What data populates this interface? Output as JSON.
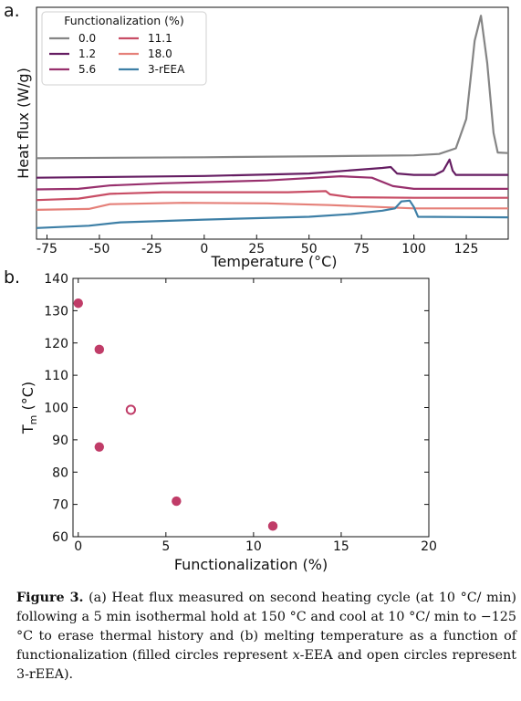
{
  "chart_data": [
    {
      "type": "line",
      "panel_label": "a.",
      "xlabel": "Temperature (°C)",
      "ylabel": "Heat flux (W/g)",
      "xlim": [
        -80,
        145
      ],
      "x_ticks": [
        -75,
        -50,
        -25,
        0,
        25,
        50,
        75,
        100,
        125
      ],
      "grid": false,
      "legend": {
        "title": "Functionalization (%)",
        "placement": "top-left",
        "columns": 2
      },
      "series": [
        {
          "name": "0.0",
          "color": "#858585",
          "points": [
            [
              -80,
              0.6
            ],
            [
              0,
              0.63
            ],
            [
              60,
              0.67
            ],
            [
              100,
              0.7
            ],
            [
              112,
              0.75
            ],
            [
              120,
              0.95
            ],
            [
              125,
              2.0
            ],
            [
              129,
              4.8
            ],
            [
              132,
              5.7
            ],
            [
              135,
              4.0
            ],
            [
              138,
              1.5
            ],
            [
              140,
              0.8
            ],
            [
              145,
              0.78
            ]
          ]
        },
        {
          "name": "1.2",
          "color": "#651d62",
          "points": [
            [
              -80,
              -0.1
            ],
            [
              0,
              -0.04
            ],
            [
              50,
              0.05
            ],
            [
              85,
              0.25
            ],
            [
              89,
              0.28
            ],
            [
              92,
              0.05
            ],
            [
              100,
              0.0
            ],
            [
              110,
              0.0
            ],
            [
              114,
              0.15
            ],
            [
              117,
              0.55
            ],
            [
              118.5,
              0.15
            ],
            [
              120,
              0.0
            ],
            [
              145,
              0.0
            ]
          ]
        },
        {
          "name": "5.6",
          "color": "#98306d",
          "points": [
            [
              -80,
              -0.52
            ],
            [
              -60,
              -0.5
            ],
            [
              -45,
              -0.38
            ],
            [
              -20,
              -0.3
            ],
            [
              30,
              -0.2
            ],
            [
              65,
              -0.05
            ],
            [
              80,
              -0.1
            ],
            [
              90,
              -0.4
            ],
            [
              100,
              -0.5
            ],
            [
              145,
              -0.5
            ]
          ]
        },
        {
          "name": "11.1",
          "color": "#c84d65",
          "points": [
            [
              -80,
              -0.9
            ],
            [
              -60,
              -0.85
            ],
            [
              -45,
              -0.68
            ],
            [
              -20,
              -0.62
            ],
            [
              40,
              -0.62
            ],
            [
              58,
              -0.58
            ],
            [
              60,
              -0.7
            ],
            [
              70,
              -0.8
            ],
            [
              100,
              -0.82
            ],
            [
              145,
              -0.82
            ]
          ]
        },
        {
          "name": "18.0",
          "color": "#e58079",
          "points": [
            [
              -80,
              -1.25
            ],
            [
              -55,
              -1.22
            ],
            [
              -45,
              -1.05
            ],
            [
              -10,
              -1.0
            ],
            [
              30,
              -1.02
            ],
            [
              60,
              -1.08
            ],
            [
              100,
              -1.2
            ],
            [
              145,
              -1.2
            ]
          ]
        },
        {
          "name": "3-rEEA",
          "color": "#3d7fa6",
          "points": [
            [
              -80,
              -1.9
            ],
            [
              -55,
              -1.82
            ],
            [
              -40,
              -1.7
            ],
            [
              0,
              -1.6
            ],
            [
              50,
              -1.5
            ],
            [
              70,
              -1.4
            ],
            [
              85,
              -1.28
            ],
            [
              91,
              -1.2
            ],
            [
              94,
              -0.95
            ],
            [
              98,
              -0.92
            ],
            [
              100,
              -1.15
            ],
            [
              102,
              -1.5
            ],
            [
              145,
              -1.52
            ]
          ]
        }
      ]
    },
    {
      "type": "scatter",
      "panel_label": "b.",
      "xlabel": "Functionalization (%)",
      "ylabel_main": "T",
      "ylabel_sub": "m",
      "ylabel_unit": " (°C)",
      "xlim": [
        -0.3,
        20
      ],
      "ylim": [
        60,
        140
      ],
      "x_ticks": [
        0,
        5,
        10,
        15,
        20
      ],
      "y_ticks": [
        60,
        70,
        80,
        90,
        100,
        110,
        120,
        130,
        140
      ],
      "grid": false,
      "color": "#c03c68",
      "series": [
        {
          "name": "x-EEA",
          "marker": "filled",
          "points": [
            [
              0.0,
              132.3
            ],
            [
              1.2,
              118.0
            ],
            [
              1.2,
              87.8
            ],
            [
              5.6,
              71.0
            ],
            [
              11.1,
              63.3
            ]
          ]
        },
        {
          "name": "3-rEEA",
          "marker": "open",
          "points": [
            [
              3.0,
              99.3
            ]
          ]
        }
      ]
    }
  ],
  "caption": {
    "label": "Figure 3.",
    "text_1": " (a) Heat flux measured on second heating cycle (at 10 °C/ min) following a 5 min isothermal hold at 150 °C and cool at 10 °C/ min to −125 °C to erase thermal history and (b) melting temperature as a function of functionalization (filled circles represent ",
    "italic": "x",
    "text_2": "-EEA and open circles represent 3-rEEA)."
  }
}
